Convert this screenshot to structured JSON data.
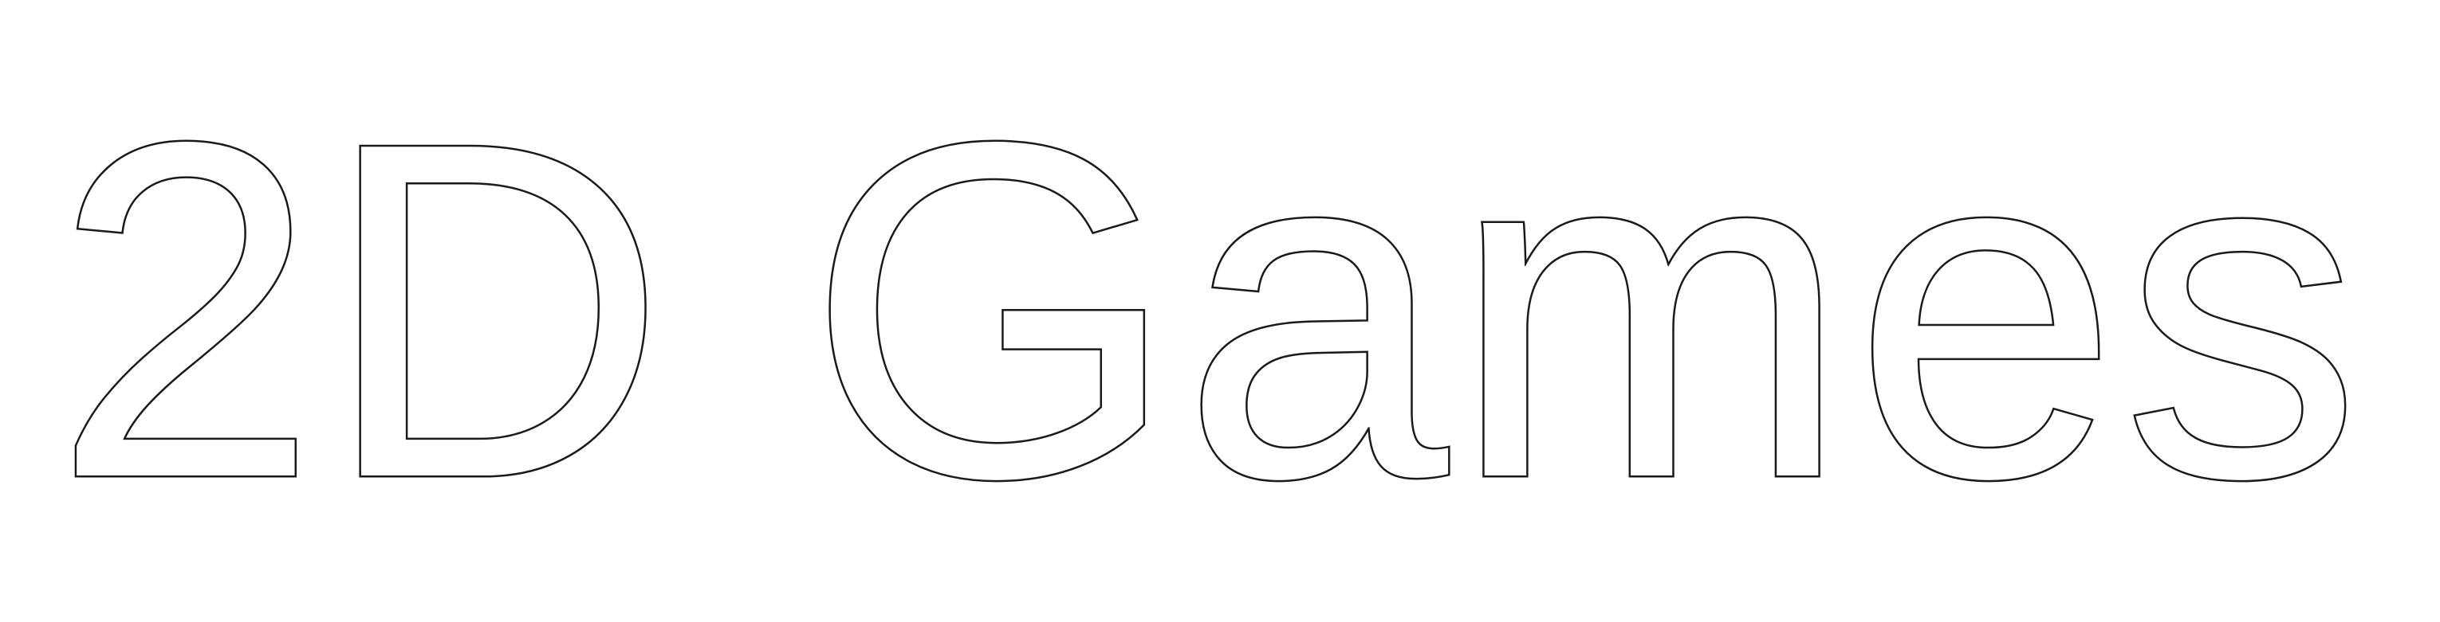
{
  "title": {
    "text": "2D Games",
    "fill_color": "#ffffff",
    "stroke_color": "#1a1a1a"
  },
  "background_color": "#ffffff"
}
